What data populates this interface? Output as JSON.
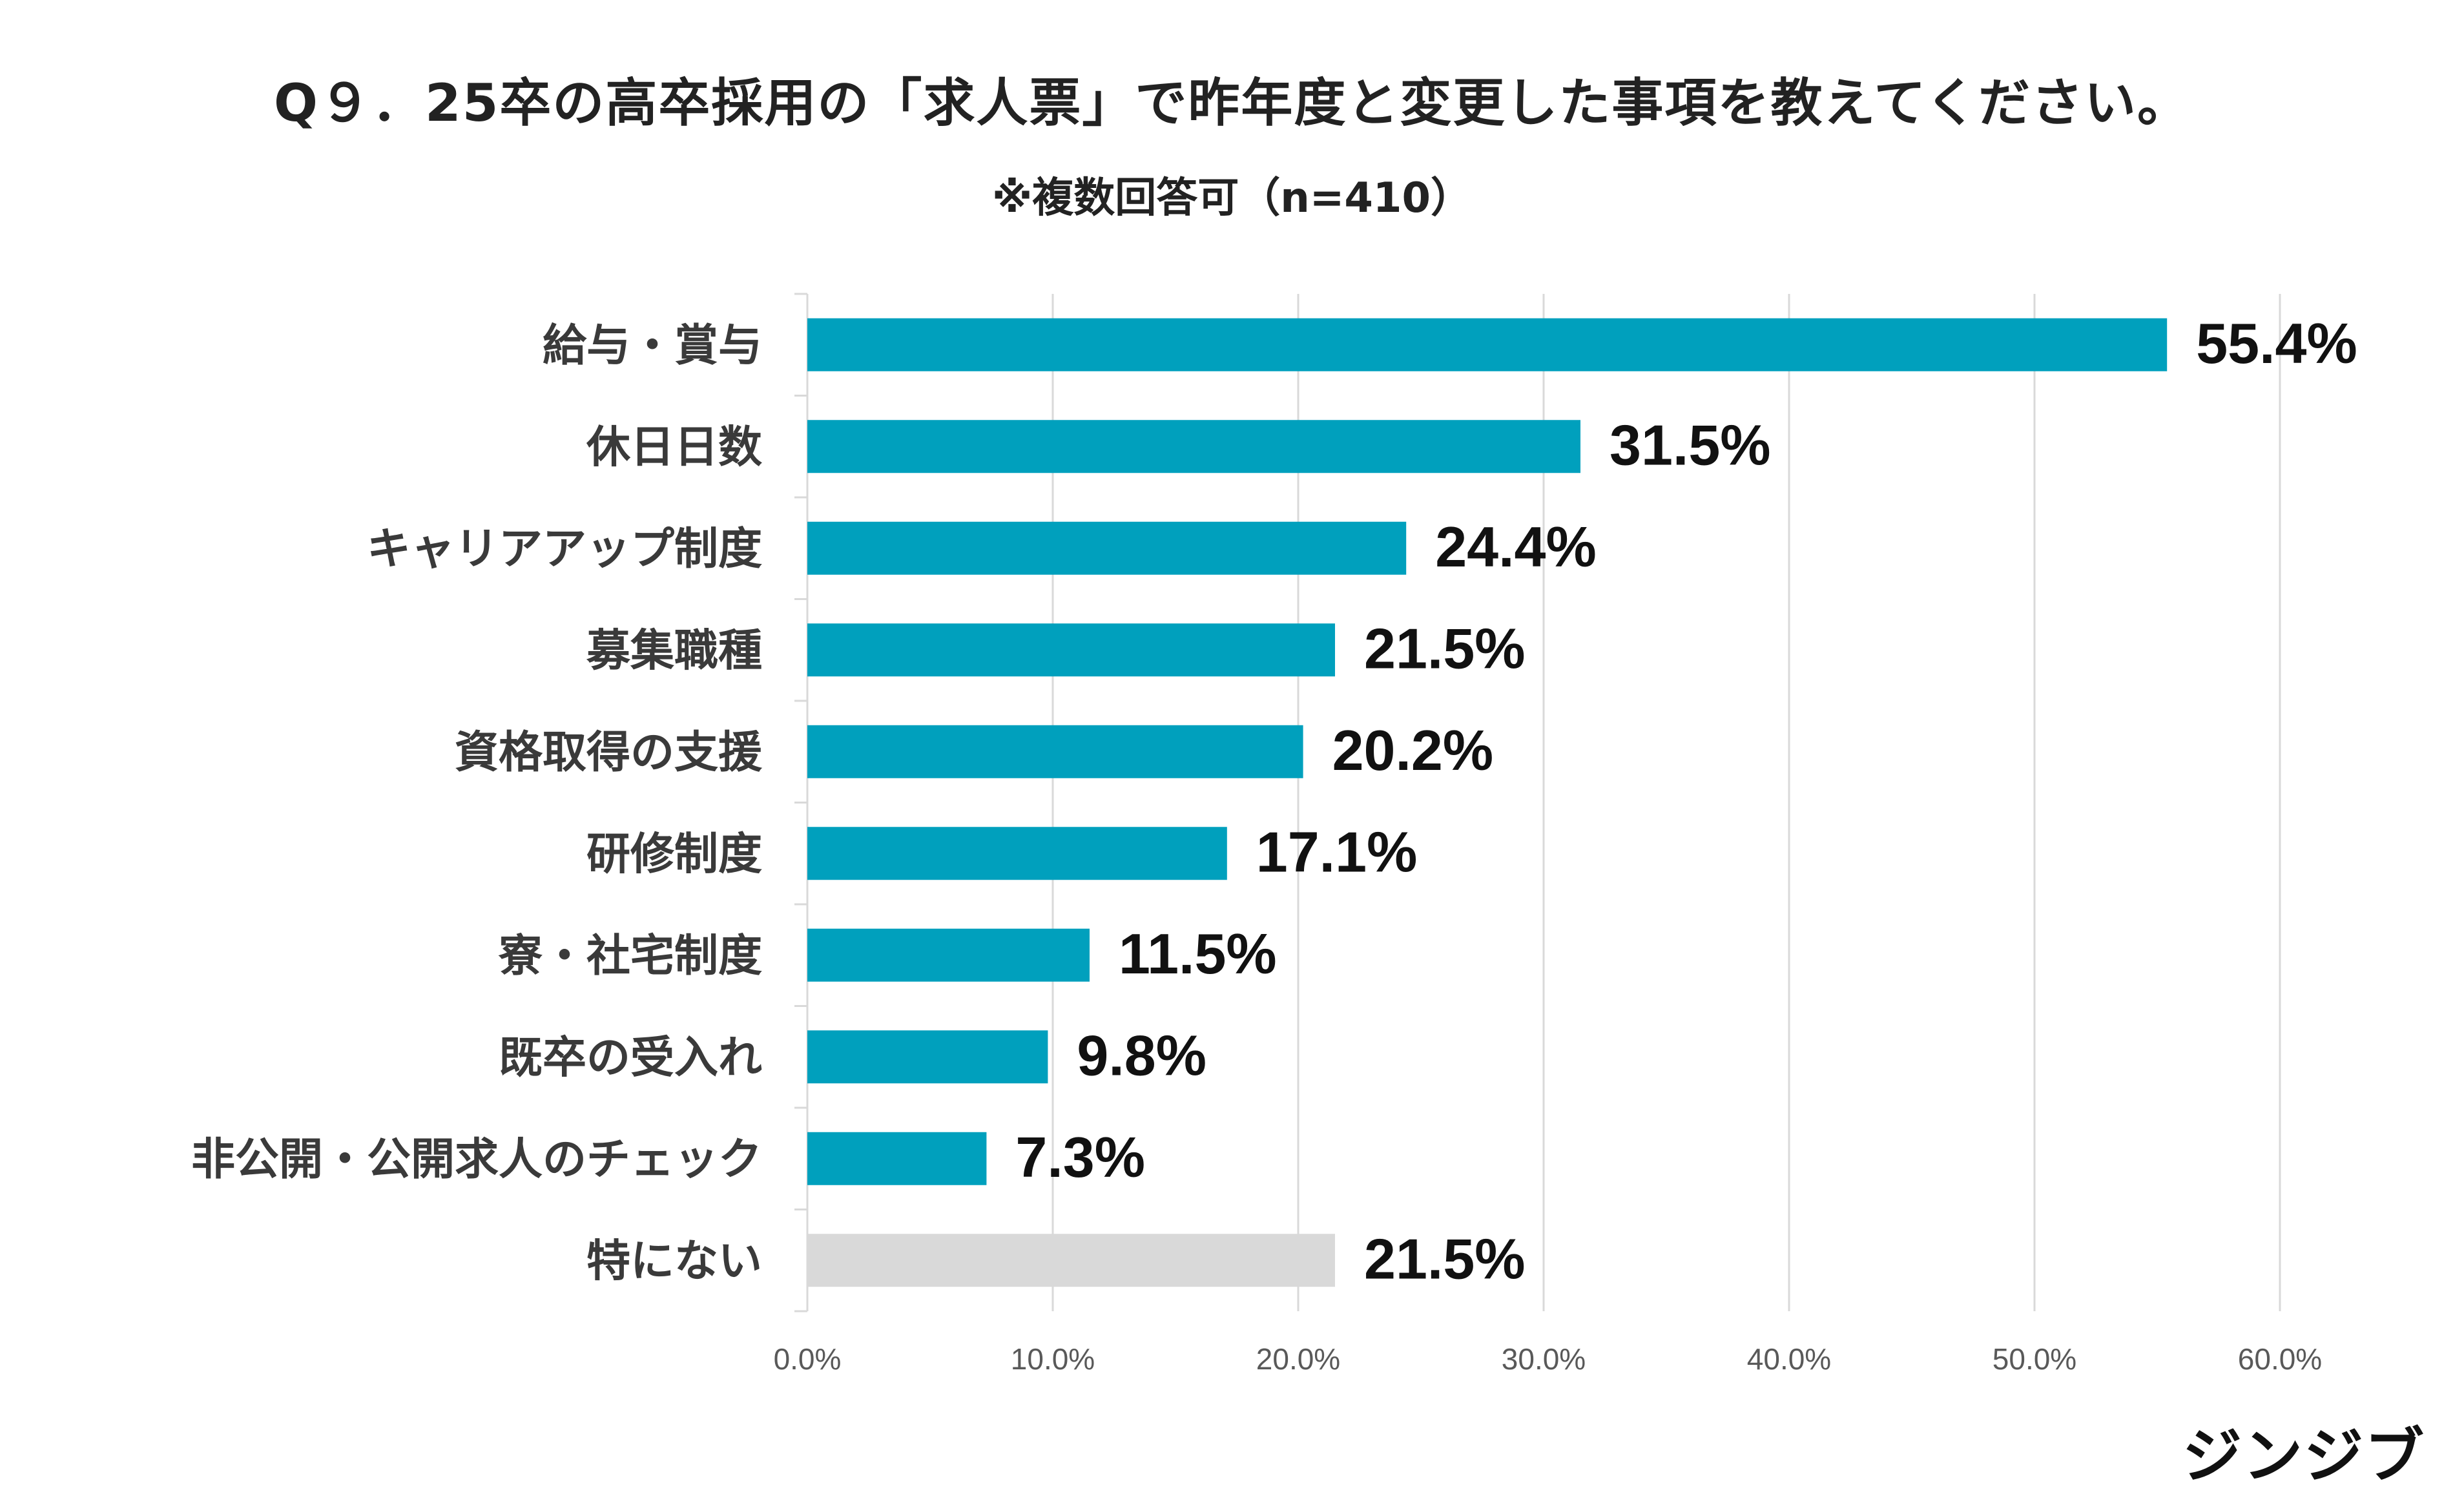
{
  "chart_data": {
    "type": "bar",
    "orientation": "horizontal",
    "title": "Q９．25卒の高卒採用の「求人票」で昨年度と変更した事項を教えてください。",
    "subtitle": "※複数回答可（n=410）",
    "categories": [
      "給与・賞与",
      "休日日数",
      "キャリアアップ制度",
      "募集職種",
      "資格取得の支援",
      "研修制度",
      "寮・社宅制度",
      "既卒の受入れ",
      "非公開・公開求人のチェック",
      "特にない"
    ],
    "values": [
      55.4,
      31.5,
      24.4,
      21.5,
      20.2,
      17.1,
      11.5,
      9.8,
      7.3,
      21.5
    ],
    "data_labels": [
      "55.4%",
      "31.5%",
      "24.4%",
      "21.5%",
      "20.2%",
      "17.1%",
      "11.5%",
      "9.8%",
      "7.3%",
      "21.5%"
    ],
    "bar_colors": [
      "#00a0bd",
      "#00a0bd",
      "#00a0bd",
      "#00a0bd",
      "#00a0bd",
      "#00a0bd",
      "#00a0bd",
      "#00a0bd",
      "#00a0bd",
      "#d9d9d9"
    ],
    "x_ticks": [
      0,
      10,
      20,
      30,
      40,
      50,
      60
    ],
    "x_tick_labels": [
      "0.0%",
      "10.0%",
      "20.0%",
      "30.0%",
      "40.0%",
      "50.0%",
      "60.0%"
    ],
    "xlim": [
      0,
      60
    ],
    "grid": true,
    "legend": "none"
  },
  "brand": {
    "logo_text": "ジンジブ"
  },
  "colors": {
    "accent": "#00a0bd",
    "neutral_bar": "#d9d9d9",
    "gridline": "#d9d9d9"
  }
}
